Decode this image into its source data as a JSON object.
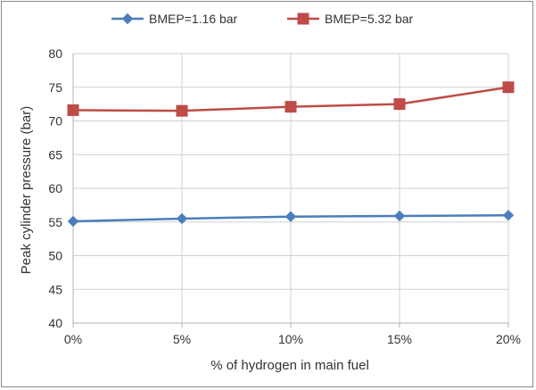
{
  "chart_data": {
    "type": "line",
    "title": "",
    "xlabel": "% of hydrogen in main fuel",
    "ylabel": "Peak cylinder pressure (bar)",
    "categories": [
      "0%",
      "5%",
      "10%",
      "15%",
      "20%"
    ],
    "ylim": [
      40,
      80
    ],
    "yticks": [
      "40",
      "45",
      "50",
      "55",
      "60",
      "65",
      "70",
      "75",
      "80"
    ],
    "grid": "horizontal",
    "legend_position": "top",
    "series": [
      {
        "name": "BMEP=1.16 bar",
        "color": "#4a7ebb",
        "marker": "diamond",
        "values": [
          55.1,
          55.5,
          55.8,
          55.9,
          56.0
        ]
      },
      {
        "name": "BMEP=5.32 bar",
        "color": "#be4b48",
        "marker": "square",
        "values": [
          71.6,
          71.5,
          72.1,
          72.5,
          75.0
        ]
      }
    ]
  }
}
